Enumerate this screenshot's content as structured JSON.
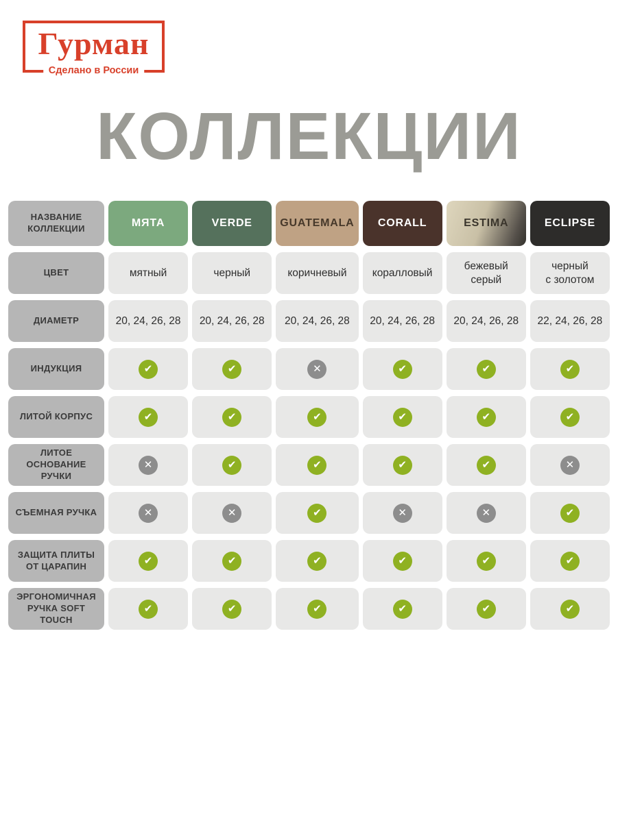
{
  "logo": {
    "brand": "Гурман",
    "tagline": "Сделано в России",
    "accent_color": "#d8402a"
  },
  "title": "КОЛЛЕКЦИИ",
  "title_color": "#9b9b95",
  "table": {
    "header_label": "НАЗВАНИЕ КОЛЛЕКЦИИ",
    "collections": [
      {
        "name": "МЯТА",
        "bg": "#7ca97e",
        "fg": "#ffffff"
      },
      {
        "name": "VERDE",
        "bg": "#55715c",
        "fg": "#ffffff"
      },
      {
        "name": "GUATEMALA",
        "bg": "#bfa284",
        "fg": "#46382a"
      },
      {
        "name": "CORALL",
        "bg": "#4a332b",
        "fg": "#ffffff"
      },
      {
        "name": "ESTIMA",
        "bg": "linear-gradient(110deg,#ded6bd 0%,#c9c0a6 45%,#55504a 85%,#34322d 100%)",
        "fg": "#3a352c"
      },
      {
        "name": "ECLIPSE",
        "bg": "#2d2c2a",
        "fg": "#ffffff"
      }
    ],
    "rows": [
      {
        "label": "ЦВЕТ",
        "type": "text",
        "values": [
          "мятный",
          "черный",
          "коричневый",
          "коралловый",
          "бежевый\nсерый",
          "черный\nс золотом"
        ]
      },
      {
        "label": "ДИАМЕТР",
        "type": "text",
        "values": [
          "20, 24, 26, 28",
          "20, 24, 26, 28",
          "20, 24, 26, 28",
          "20, 24, 26, 28",
          "20, 24, 26, 28",
          "22, 24, 26, 28"
        ]
      },
      {
        "label": "ИНДУКЦИЯ",
        "type": "bool",
        "values": [
          true,
          true,
          false,
          true,
          true,
          true
        ]
      },
      {
        "label": "ЛИТОЙ КОРПУС",
        "type": "bool",
        "values": [
          true,
          true,
          true,
          true,
          true,
          true
        ]
      },
      {
        "label": "ЛИТОЕ ОСНОВАНИЕ РУЧКИ",
        "type": "bool",
        "values": [
          false,
          true,
          true,
          true,
          true,
          false
        ]
      },
      {
        "label": "СЪЕМНАЯ РУЧКА",
        "type": "bool",
        "values": [
          false,
          false,
          true,
          false,
          false,
          true
        ]
      },
      {
        "label": "ЗАЩИТА ПЛИТЫ ОТ ЦАРАПИН",
        "type": "bool",
        "values": [
          true,
          true,
          true,
          true,
          true,
          true
        ]
      },
      {
        "label": "ЭРГОНОМИЧНАЯ РУЧКА SOFT TOUCH",
        "type": "bool",
        "values": [
          true,
          true,
          true,
          true,
          true,
          true
        ]
      }
    ],
    "icons": {
      "check_glyph": "✔",
      "cross_glyph": "✕",
      "check_color": "#8fb122",
      "cross_color": "#8d8d8d"
    },
    "colors": {
      "label_bg": "#b6b6b6",
      "label_fg": "#3a3a3a",
      "cell_bg": "#e8e8e7",
      "cell_fg": "#2e2e2e"
    }
  }
}
